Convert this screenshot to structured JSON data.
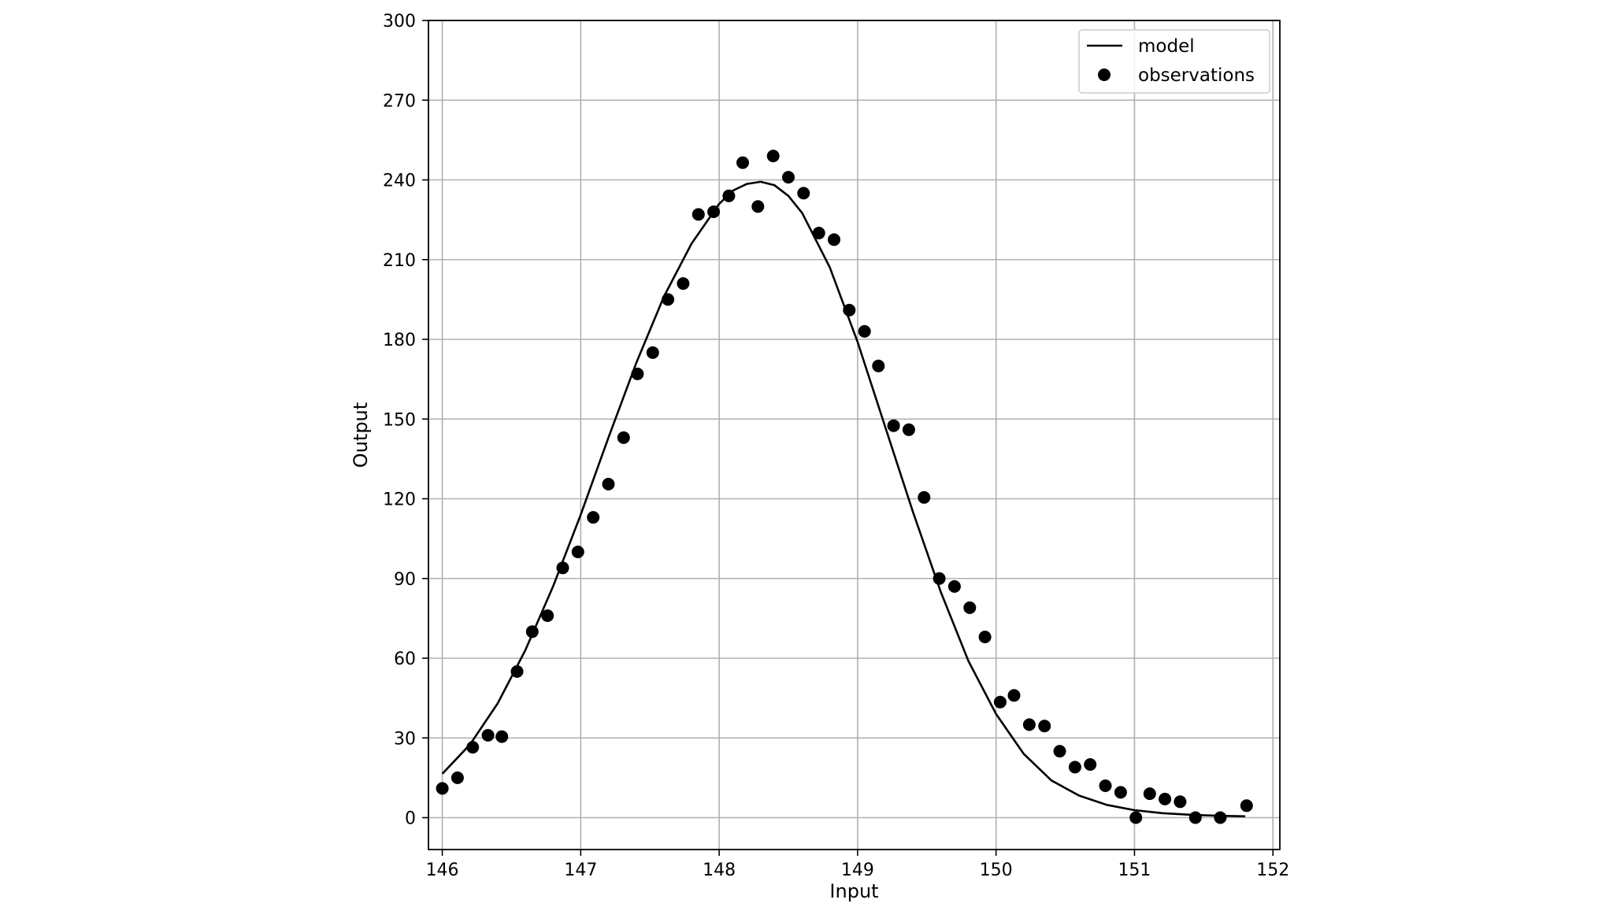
{
  "chart_data": {
    "type": "scatter",
    "title": "",
    "xlabel": "Input",
    "ylabel": "Output",
    "xlim": [
      145.9,
      152.05
    ],
    "ylim": [
      -12,
      300
    ],
    "xticks": [
      146,
      147,
      148,
      149,
      150,
      151,
      152
    ],
    "yticks": [
      0,
      30,
      60,
      90,
      120,
      150,
      180,
      210,
      240,
      270,
      300
    ],
    "grid": true,
    "legend_position": "top-right",
    "series": [
      {
        "name": "model",
        "kind": "line",
        "color": "#000000",
        "x": [
          146.0,
          146.2,
          146.4,
          146.6,
          146.8,
          147.0,
          147.2,
          147.4,
          147.6,
          147.8,
          148.0,
          148.1,
          148.2,
          148.3,
          148.4,
          148.5,
          148.6,
          148.8,
          149.0,
          149.2,
          149.4,
          149.6,
          149.8,
          150.0,
          150.2,
          150.4,
          150.6,
          150.8,
          151.0,
          151.2,
          151.4,
          151.6,
          151.8
        ],
        "y": [
          16.5,
          27.5,
          43,
          63,
          87,
          114,
          143,
          171,
          196,
          216,
          231,
          236,
          238.5,
          239.3,
          238,
          234,
          227.5,
          207,
          179,
          147,
          115,
          85,
          59,
          39,
          24,
          14,
          8.3,
          4.8,
          2.8,
          1.7,
          1.1,
          0.7,
          0.5
        ]
      },
      {
        "name": "observations",
        "kind": "scatter",
        "color": "#000000",
        "x": [
          146.0,
          146.11,
          146.22,
          146.33,
          146.43,
          146.54,
          146.65,
          146.76,
          146.87,
          146.98,
          147.09,
          147.2,
          147.31,
          147.41,
          147.52,
          147.63,
          147.74,
          147.85,
          147.96,
          148.07,
          148.17,
          148.28,
          148.39,
          148.5,
          148.61,
          148.72,
          148.83,
          148.94,
          149.05,
          149.15,
          149.26,
          149.37,
          149.48,
          149.59,
          149.7,
          149.81,
          149.92,
          150.03,
          150.13,
          150.24,
          150.35,
          150.46,
          150.57,
          150.68,
          150.79,
          150.9,
          151.01,
          151.11,
          151.22,
          151.33,
          151.44,
          151.62,
          151.81
        ],
        "y": [
          11,
          15,
          26.5,
          31,
          30.5,
          55,
          70,
          76,
          94,
          100,
          113,
          125.5,
          143,
          167,
          175,
          195,
          201,
          227,
          228,
          234,
          246.5,
          230,
          249,
          241,
          235,
          220,
          217.5,
          191,
          183,
          170,
          147.5,
          146,
          120.5,
          90,
          87,
          79,
          68,
          43.5,
          46,
          35,
          34.5,
          25,
          19,
          20,
          12,
          9.5,
          0,
          9,
          7,
          6,
          0,
          0,
          4.5
        ]
      }
    ]
  }
}
